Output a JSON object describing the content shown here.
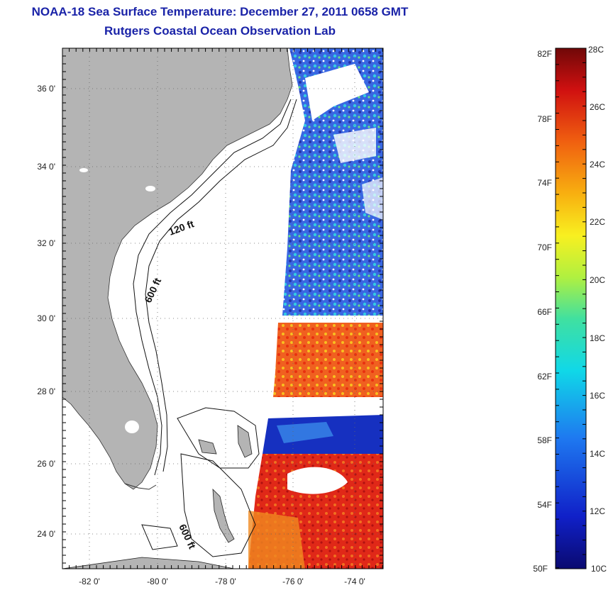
{
  "title": {
    "line1": "NOAA-18 Sea Surface Temperature:  December 27, 2011 0658 GMT",
    "line2": "Rutgers Coastal Ocean Observation Lab"
  },
  "map": {
    "lon_ticks": [
      "-82 0'",
      "-80 0'",
      "-78 0'",
      "-76 0'",
      "-74 0'"
    ],
    "lat_ticks": [
      "36 0'",
      "34 0'",
      "32 0'",
      "30 0'",
      "28 0'",
      "26 0'",
      "24 0'"
    ],
    "contours": [
      "120 ft",
      "600 ft",
      "600 ft"
    ],
    "colors": {
      "land": "#b4b4b4",
      "ocean": "#ffffff",
      "cold": "#1020a0",
      "warm": "#e03010"
    }
  },
  "colorbar": {
    "fahrenheit": [
      "82F",
      "78F",
      "74F",
      "70F",
      "66F",
      "62F",
      "58F",
      "54F",
      "50F"
    ],
    "celsius": [
      "28C",
      "26C",
      "24C",
      "22C",
      "20C",
      "18C",
      "16C",
      "14C",
      "12C",
      "10C"
    ]
  }
}
